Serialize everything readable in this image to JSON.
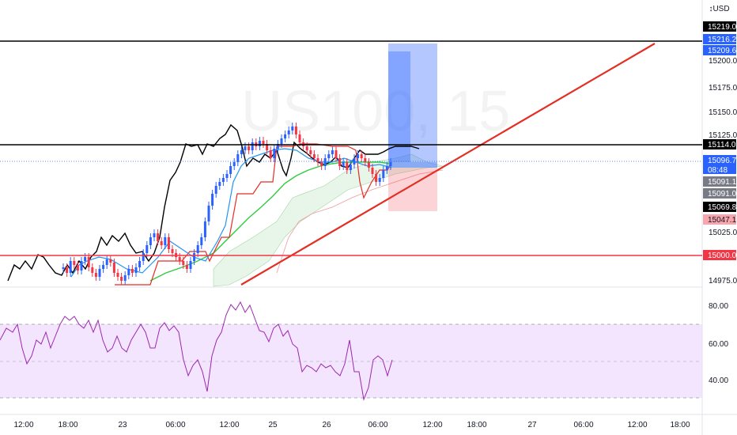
{
  "chart_data": {
    "type": "line",
    "watermark": "US100, 15",
    "currency": "USD",
    "currency_mark": "↕",
    "price_axis": {
      "ticks": [
        "15200.0",
        "15175.0",
        "15150.0",
        "15125.0",
        "15025.0",
        "14975.0"
      ]
    },
    "time_axis": {
      "ticks": [
        "12:00",
        "18:00",
        "23",
        "06:00",
        "12:00",
        "25",
        "26",
        "06:00",
        "12:00",
        "18:00",
        "27",
        "06:00",
        "12:00",
        "18:00"
      ]
    },
    "horizontal_lines": [
      {
        "price": 15219.0,
        "label": "15219.0",
        "color": "#000000"
      },
      {
        "price": 15114.0,
        "label": "15114.0",
        "color": "#000000"
      },
      {
        "price": 15000.0,
        "label": "15000.0",
        "color": "#f23645"
      }
    ],
    "price_labels": [
      {
        "label": "15216.2",
        "color": "#2962ff"
      },
      {
        "label": "15209.6",
        "color": "#2962ff"
      },
      {
        "label": "15096.7",
        "sub": "08:48",
        "color": "#2962ff"
      },
      {
        "label": "15091.1",
        "color": "#787b86"
      },
      {
        "label": "15091.0",
        "color": "#787b86"
      },
      {
        "label": "15069.8",
        "color": "#000000"
      },
      {
        "label": "15047.1",
        "color": "#f7a6ad",
        "text_color": "#131722"
      }
    ],
    "trendline_color": "#e32f24",
    "rsi": {
      "ticks": [
        "80.00",
        "60.00",
        "40.00"
      ],
      "upper": 70,
      "lower": 30,
      "line_color": "#9c27b0",
      "band_color": "#f3e5fe"
    },
    "colors": {
      "up": "#2962ff",
      "down": "#f23645",
      "black_line": "#000000",
      "green_line": "#2ecc40",
      "blue_line": "#2196f3",
      "red_line": "#e32f24"
    }
  }
}
